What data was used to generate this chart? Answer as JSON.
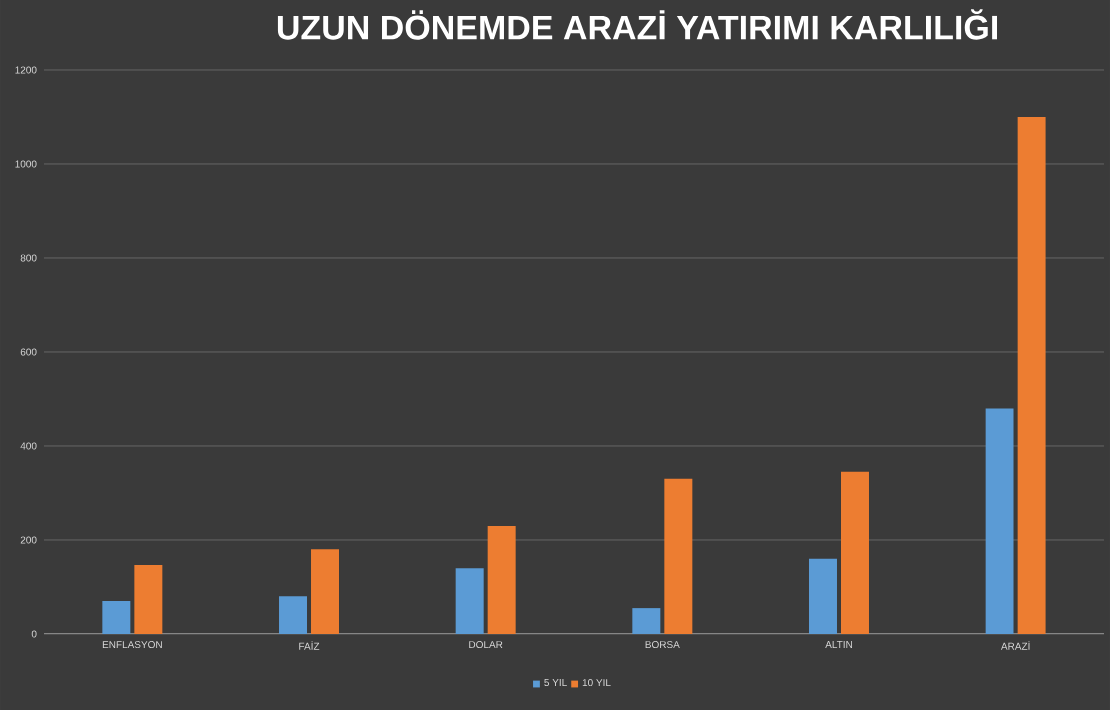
{
  "chart_data": {
    "type": "bar",
    "title": "UZUN DÖNEMDE ARAZİ YATIRIMI KARLILIĞI",
    "categories": [
      "ENFLASYON",
      "FAİZ",
      "DOLAR",
      "BORSA",
      "ALTIN",
      "ARAZİ"
    ],
    "series": [
      {
        "name": "5 YIL",
        "color": "#5b9bd5",
        "values": [
          70,
          80,
          140,
          55,
          160,
          480
        ]
      },
      {
        "name": "10 YIL",
        "color": "#ed7d31",
        "values": [
          147,
          180,
          230,
          330,
          345,
          1100
        ]
      }
    ],
    "ylim": [
      0,
      1200
    ],
    "yticks": [
      0,
      200,
      400,
      600,
      800,
      1000,
      1200
    ],
    "grid": "y",
    "legend": "bottom"
  }
}
